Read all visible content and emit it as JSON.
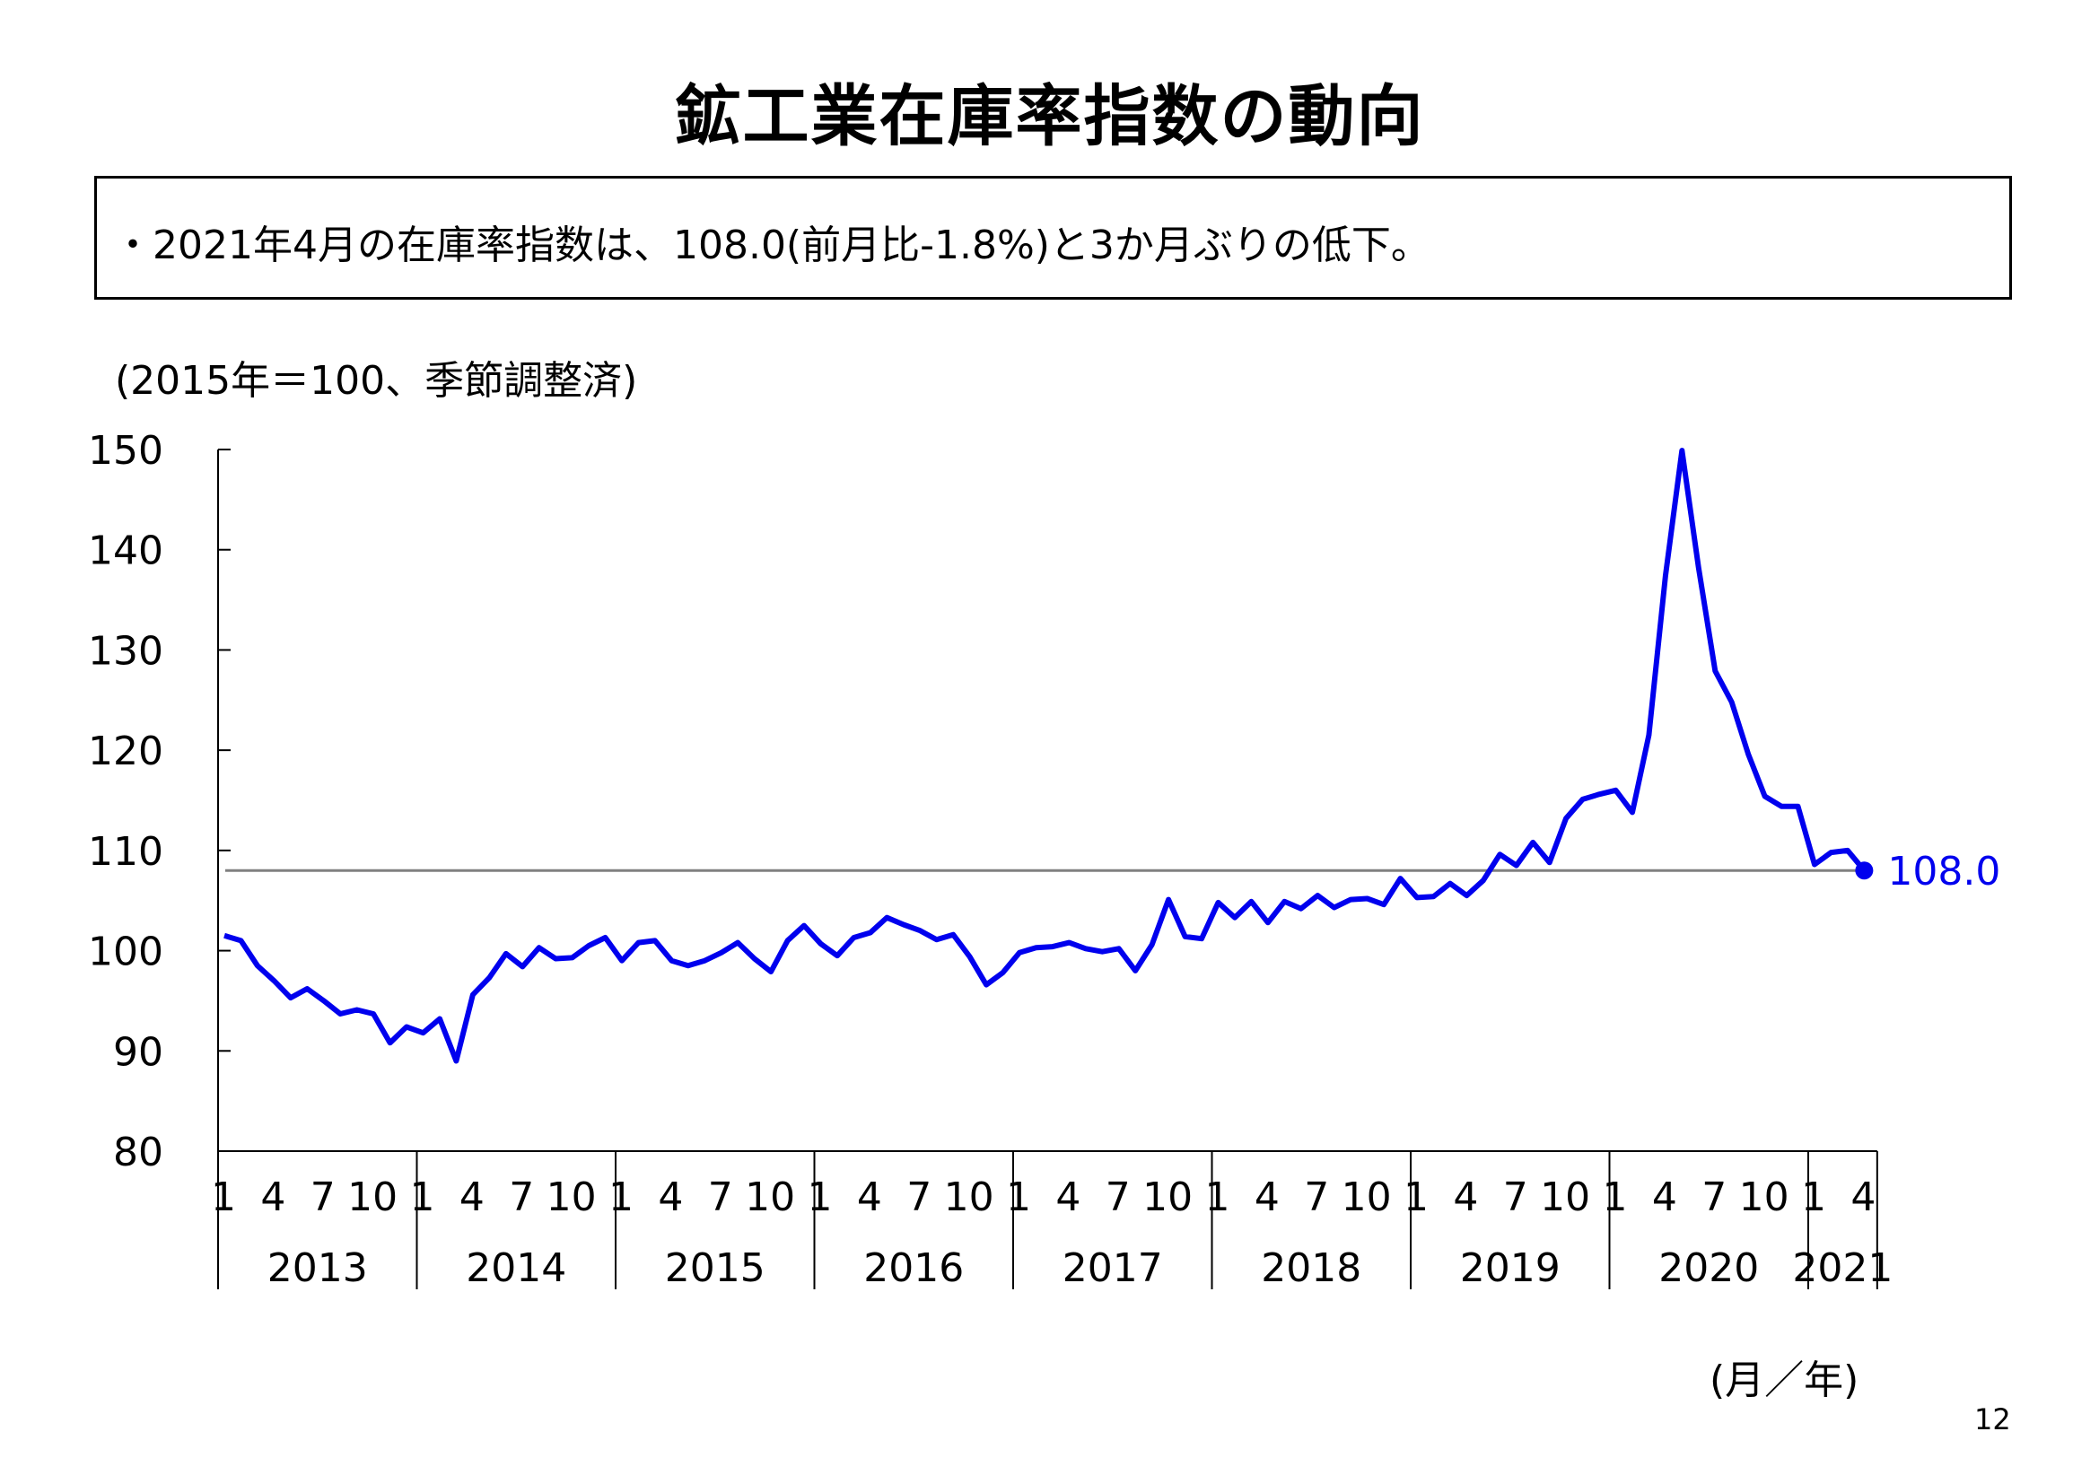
{
  "title": "鉱工業在庫率指数の動向",
  "summary": "・2021年4月の在庫率指数は、108.0(前月比-1.8%)と3か月ぶりの低下。",
  "unit_note": "(2015年＝100、季節調整済)",
  "x_unit": "(月／年)",
  "page_number": "12",
  "colors": {
    "series": "#0000ee",
    "reference_line": "#808080",
    "axis": "#000000"
  },
  "chart_data": {
    "type": "line",
    "ylim": [
      80,
      150
    ],
    "yticks": [
      "150",
      "140",
      "130",
      "120",
      "110",
      "100",
      "90",
      "80"
    ],
    "month_tick_labels": [
      "1",
      "4",
      "7",
      "10"
    ],
    "last_month_tick_labels": [
      "1",
      "4"
    ],
    "years": [
      "2013",
      "2014",
      "2015",
      "2016",
      "2017",
      "2018",
      "2019",
      "2020",
      "2021"
    ],
    "reference_value": 108.0,
    "end_label": "108.0",
    "series": [
      {
        "values": [
          101.5,
          101.0,
          98.5,
          97.0,
          95.3,
          96.2,
          95.0,
          93.7,
          94.1,
          93.7,
          90.8,
          92.4,
          91.8,
          93.2,
          89.0,
          95.6,
          97.3,
          99.7,
          98.4,
          100.3,
          99.2,
          99.3,
          100.5,
          101.3,
          99.0,
          100.8,
          101.0,
          99.0,
          98.5,
          99.0,
          99.8,
          100.8,
          99.2,
          97.9,
          101.0,
          102.5,
          100.7,
          99.5,
          101.3,
          101.8,
          103.3,
          102.6,
          102.0,
          101.1,
          101.6,
          99.4,
          96.6,
          97.8,
          99.8,
          100.3,
          100.4,
          100.8,
          100.2,
          99.9,
          100.2,
          98.0,
          100.6,
          105.1,
          101.4,
          101.2,
          104.8,
          103.3,
          104.9,
          102.8,
          104.9,
          104.2,
          105.5,
          104.3,
          105.1,
          105.2,
          104.6,
          107.2,
          105.3,
          105.4,
          106.7,
          105.5,
          107.0,
          109.6,
          108.5,
          110.8,
          108.8,
          113.2,
          115.1,
          115.6,
          116.0,
          113.8,
          121.5,
          137.4,
          149.9,
          138.2,
          127.9,
          124.8,
          119.6,
          115.4,
          114.4,
          114.4,
          108.6,
          109.8,
          110.0,
          108.0
        ]
      }
    ]
  }
}
